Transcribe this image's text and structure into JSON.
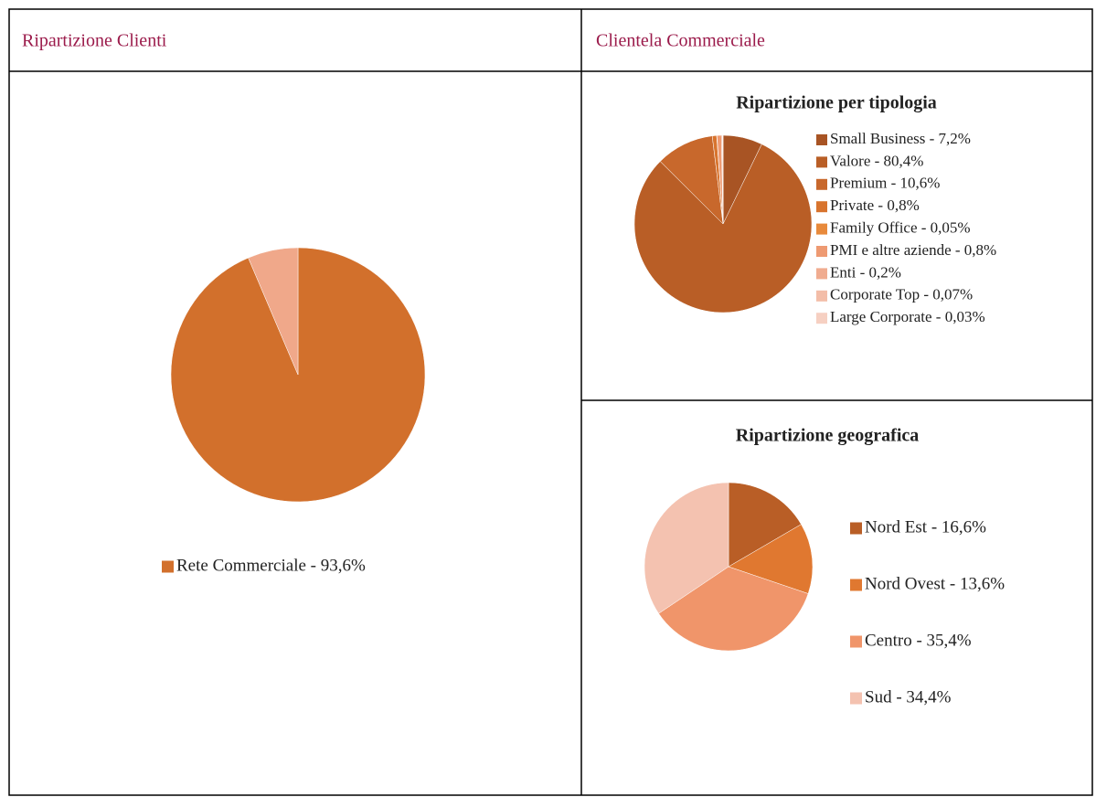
{
  "headers": [
    "Ripartizione Clienti",
    "Clientela Commerciale"
  ],
  "chart_data": [
    {
      "type": "pie",
      "labels": [
        "Rete Commerciale - 93,6%",
        null
      ],
      "values": [
        93.6,
        6.4
      ],
      "colors": [
        "#d2702c",
        "#f0a88a"
      ]
    },
    {
      "type": "pie",
      "title": "Ripartizione per tipologia",
      "labels": [
        "Small Business - 7,2%",
        "Valore - 80,4%",
        "Premium - 10,6%",
        "Private - 0,8%",
        "Family Office - 0,05%",
        "PMI e altre aziende - 0,8%",
        "Enti - 0,2%",
        "Corporate Top - 0,07%",
        "Large Corporate - 0,03%"
      ],
      "values": [
        7.2,
        80.4,
        10.6,
        0.8,
        0.05,
        0.8,
        0.2,
        0.07,
        0.03
      ],
      "colors": [
        "#a85424",
        "#b95e26",
        "#c8682c",
        "#d8742e",
        "#e88a3c",
        "#ee9a72",
        "#f0ac90",
        "#f3bda8",
        "#f6d0c2"
      ]
    },
    {
      "type": "pie",
      "title": "Ripartizione geografica",
      "labels": [
        "Nord Est - 16,6%",
        "Nord Ovest - 13,6%",
        "Centro - 35,4%",
        "Sud - 34,4%"
      ],
      "values": [
        16.6,
        13.6,
        35.4,
        34.4
      ],
      "colors": [
        "#b95e26",
        "#e07830",
        "#f0956a",
        "#f4c2b0"
      ]
    }
  ]
}
